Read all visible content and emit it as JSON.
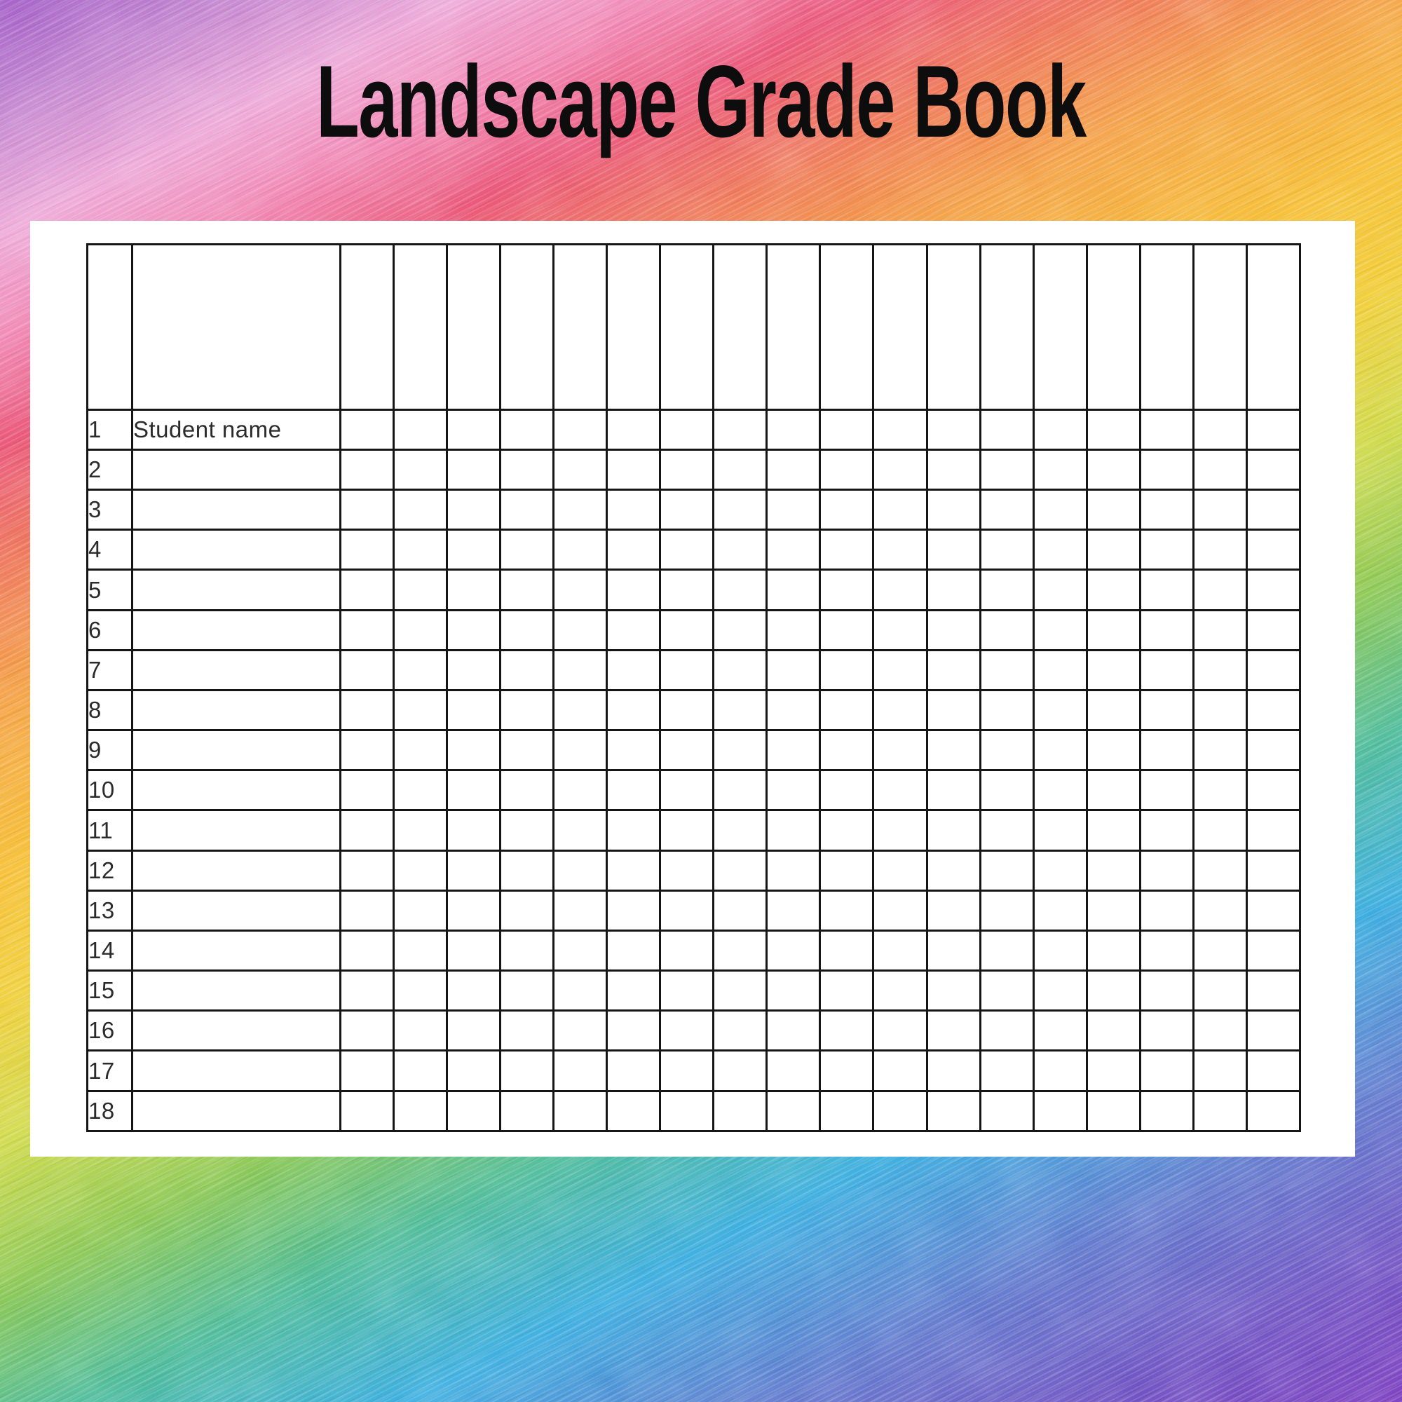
{
  "title": "Landscape Grade Book",
  "sheet": {
    "first_row_label": "Student name",
    "row_numbers": [
      "1",
      "2",
      "3",
      "4",
      "5",
      "6",
      "7",
      "8",
      "9",
      "10",
      "11",
      "12",
      "13",
      "14",
      "15",
      "16",
      "17",
      "18"
    ],
    "grade_column_count": 18
  },
  "colors": {
    "title_text": "#0d0d0d",
    "card_background": "#ffffff",
    "grid_line": "#161616",
    "cell_text": "#2b2b2b",
    "rainbow_stops": [
      "#9d55c4",
      "#bd7bcc",
      "#eda4d6",
      "#f07fae",
      "#e94e71",
      "#ee7150",
      "#f49c3e",
      "#f6ba2c",
      "#f0cb31",
      "#cdd844",
      "#84c44b",
      "#47b893",
      "#34a9de",
      "#5b73cb",
      "#6a4cc0",
      "#7537bc"
    ]
  }
}
